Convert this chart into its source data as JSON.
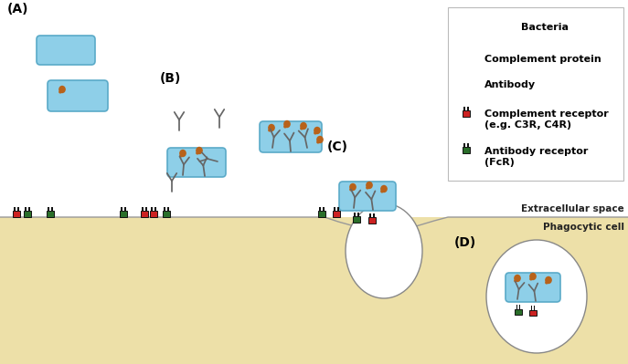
{
  "bg_color": "#ffffff",
  "cell_color": "#ede0a8",
  "bacteria_color": "#8ecfe8",
  "bacteria_edge": "#5aaac8",
  "complement_color": "#b8621a",
  "antibody_color": "#666666",
  "comp_receptor_red": "#cc2222",
  "comp_receptor_dark": "#333333",
  "ab_receptor_green": "#2a6e2a",
  "ab_receptor_dark": "#222222",
  "legend_bacteria": "Bacteria",
  "legend_complement": "Complement protein",
  "legend_antibody": "Antibody",
  "legend_comp_receptor": "Complement receptor\n(e.g. C3R, C4R)",
  "legend_ab_receptor": "Antibody receptor\n(FcR)",
  "label_A": "(A)",
  "label_B": "(B)",
  "label_C": "(C)",
  "label_D": "(D)",
  "label_extracellular": "Extracellular space",
  "label_phagocytic": "Phagocytic cell"
}
